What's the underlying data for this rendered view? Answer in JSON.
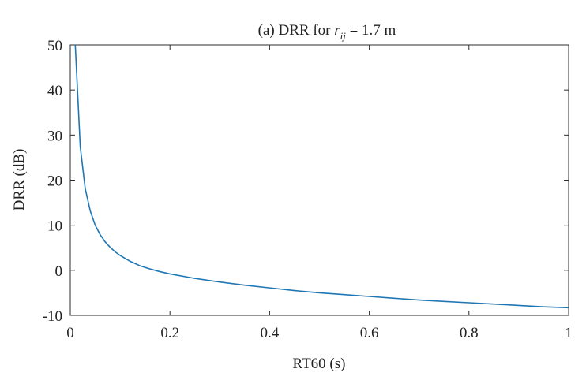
{
  "chart_data": {
    "type": "line",
    "title_prefix": "(a) DRR for ",
    "title_var": "r",
    "title_sub": "ij",
    "title_suffix": " = 1.7 m",
    "xlabel": "RT60 (s)",
    "ylabel": "DRR (dB)",
    "xlim": [
      0,
      1
    ],
    "ylim": [
      -10,
      50
    ],
    "x_ticks": [
      "0",
      "0.2",
      "0.4",
      "0.6",
      "0.8",
      "1"
    ],
    "y_ticks": [
      "-10",
      "0",
      "10",
      "20",
      "30",
      "40",
      "50"
    ],
    "grid": false,
    "line_color": "#1f77b4",
    "series": [
      {
        "x": [
          0.01,
          0.02,
          0.03,
          0.04,
          0.05,
          0.06,
          0.07,
          0.08,
          0.09,
          0.1,
          0.12,
          0.14,
          0.16,
          0.18,
          0.2,
          0.25,
          0.3,
          0.35,
          0.4,
          0.45,
          0.5,
          0.55,
          0.6,
          0.65,
          0.7,
          0.75,
          0.8,
          0.85,
          0.9,
          0.95,
          1.0
        ],
        "y": [
          50,
          27.4,
          18.1,
          13.2,
          10.0,
          7.9,
          6.3,
          5.1,
          4.1,
          3.3,
          2.0,
          1.0,
          0.3,
          -0.3,
          -0.8,
          -1.8,
          -2.6,
          -3.3,
          -3.9,
          -4.5,
          -5.0,
          -5.4,
          -5.8,
          -6.2,
          -6.6,
          -6.9,
          -7.2,
          -7.5,
          -7.8,
          -8.1,
          -8.3
        ]
      }
    ]
  }
}
